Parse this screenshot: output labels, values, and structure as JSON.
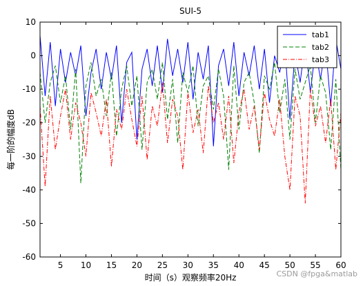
{
  "chart_data": {
    "type": "line",
    "title": "SUI-5",
    "xlabel": "时间（s）观察频率20Hz",
    "ylabel": "每一阶的幅度dB",
    "xlim": [
      1,
      60
    ],
    "ylim": [
      -60,
      10
    ],
    "xticks": [
      5,
      10,
      15,
      20,
      25,
      30,
      35,
      40,
      45,
      50,
      55,
      60
    ],
    "yticks": [
      10,
      0,
      -10,
      -20,
      -30,
      -40,
      -50,
      -60
    ],
    "grid": false,
    "legend_position": "top-right",
    "series": [
      {
        "name": "tab1",
        "color": "#0000ff",
        "style": "solid",
        "x": [
          1,
          2,
          3,
          4,
          5,
          6,
          7,
          8,
          9,
          10,
          11,
          12,
          13,
          14,
          15,
          16,
          17,
          18,
          19,
          20,
          21,
          22,
          23,
          24,
          25,
          26,
          27,
          28,
          29,
          30,
          31,
          32,
          33,
          34,
          35,
          36,
          37,
          38,
          39,
          40,
          41,
          42,
          43,
          44,
          45,
          46,
          47,
          48,
          49,
          50,
          51,
          52,
          53,
          54,
          55,
          56,
          57,
          58,
          59,
          60
        ],
        "values": [
          6,
          -12,
          4,
          -15,
          2,
          -8,
          1,
          -6,
          3,
          -18,
          -5,
          2,
          -10,
          1,
          -7,
          3,
          -20,
          -2,
          1,
          -25,
          -4,
          2,
          -9,
          3,
          -11,
          5,
          -6,
          2,
          -8,
          4,
          -13,
          1,
          -7,
          3,
          -27,
          -3,
          2,
          -9,
          4,
          -12,
          1,
          -6,
          3,
          -10,
          2,
          -14,
          0,
          -5,
          3,
          -19,
          1,
          -8,
          4,
          -11,
          2,
          -7,
          3,
          -15,
          5,
          -4
        ]
      },
      {
        "name": "tab2",
        "color": "#008000",
        "style": "dashed",
        "x": [
          1,
          2,
          3,
          4,
          5,
          6,
          7,
          8,
          9,
          10,
          11,
          12,
          13,
          14,
          15,
          16,
          17,
          18,
          19,
          20,
          21,
          22,
          23,
          24,
          25,
          26,
          27,
          28,
          29,
          30,
          31,
          32,
          33,
          34,
          35,
          36,
          37,
          38,
          39,
          40,
          41,
          42,
          43,
          44,
          45,
          46,
          47,
          48,
          49,
          50,
          51,
          52,
          53,
          54,
          55,
          56,
          57,
          58,
          59,
          60
        ],
        "values": [
          -5,
          -20,
          -8,
          -3,
          -14,
          -6,
          -22,
          -4,
          -38,
          -9,
          -2,
          -12,
          -7,
          -18,
          -5,
          -24,
          -10,
          -3,
          -15,
          -6,
          -28,
          -8,
          -4,
          -13,
          -2,
          -19,
          -7,
          -26,
          -5,
          -11,
          -3,
          -21,
          -9,
          -6,
          -16,
          -4,
          -12,
          -34,
          -3,
          -22,
          -8,
          -5,
          -14,
          -29,
          -6,
          -10,
          -2,
          -17,
          -7,
          -25,
          -4,
          -13,
          -8,
          -3,
          -20,
          -6,
          -11,
          -28,
          -7,
          -34
        ]
      },
      {
        "name": "tab3",
        "color": "#ff0000",
        "style": "dashdot",
        "x": [
          1,
          2,
          3,
          4,
          5,
          6,
          7,
          8,
          9,
          10,
          11,
          12,
          13,
          14,
          15,
          16,
          17,
          18,
          19,
          20,
          21,
          22,
          23,
          24,
          25,
          26,
          27,
          28,
          29,
          30,
          31,
          32,
          33,
          34,
          35,
          36,
          37,
          38,
          39,
          40,
          41,
          42,
          43,
          44,
          45,
          46,
          47,
          48,
          49,
          50,
          51,
          52,
          53,
          54,
          55,
          56,
          57,
          58,
          59,
          60
        ],
        "values": [
          -15,
          -39,
          -12,
          -28,
          -18,
          -10,
          -25,
          -14,
          -20,
          -30,
          -11,
          -17,
          -24,
          -13,
          -33,
          -16,
          -22,
          -10,
          -19,
          -27,
          -12,
          -31,
          -15,
          -21,
          -8,
          -26,
          -13,
          -18,
          -34,
          -11,
          -23,
          -16,
          -29,
          -9,
          -20,
          -14,
          -25,
          -12,
          -32,
          -17,
          -10,
          -22,
          -15,
          -28,
          -11,
          -19,
          -24,
          -13,
          -30,
          -40,
          -12,
          -18,
          -44,
          -10,
          -21,
          -15,
          -26,
          -13,
          -34,
          -17
        ]
      }
    ]
  },
  "watermark": "CSDN @fpga&matlab"
}
